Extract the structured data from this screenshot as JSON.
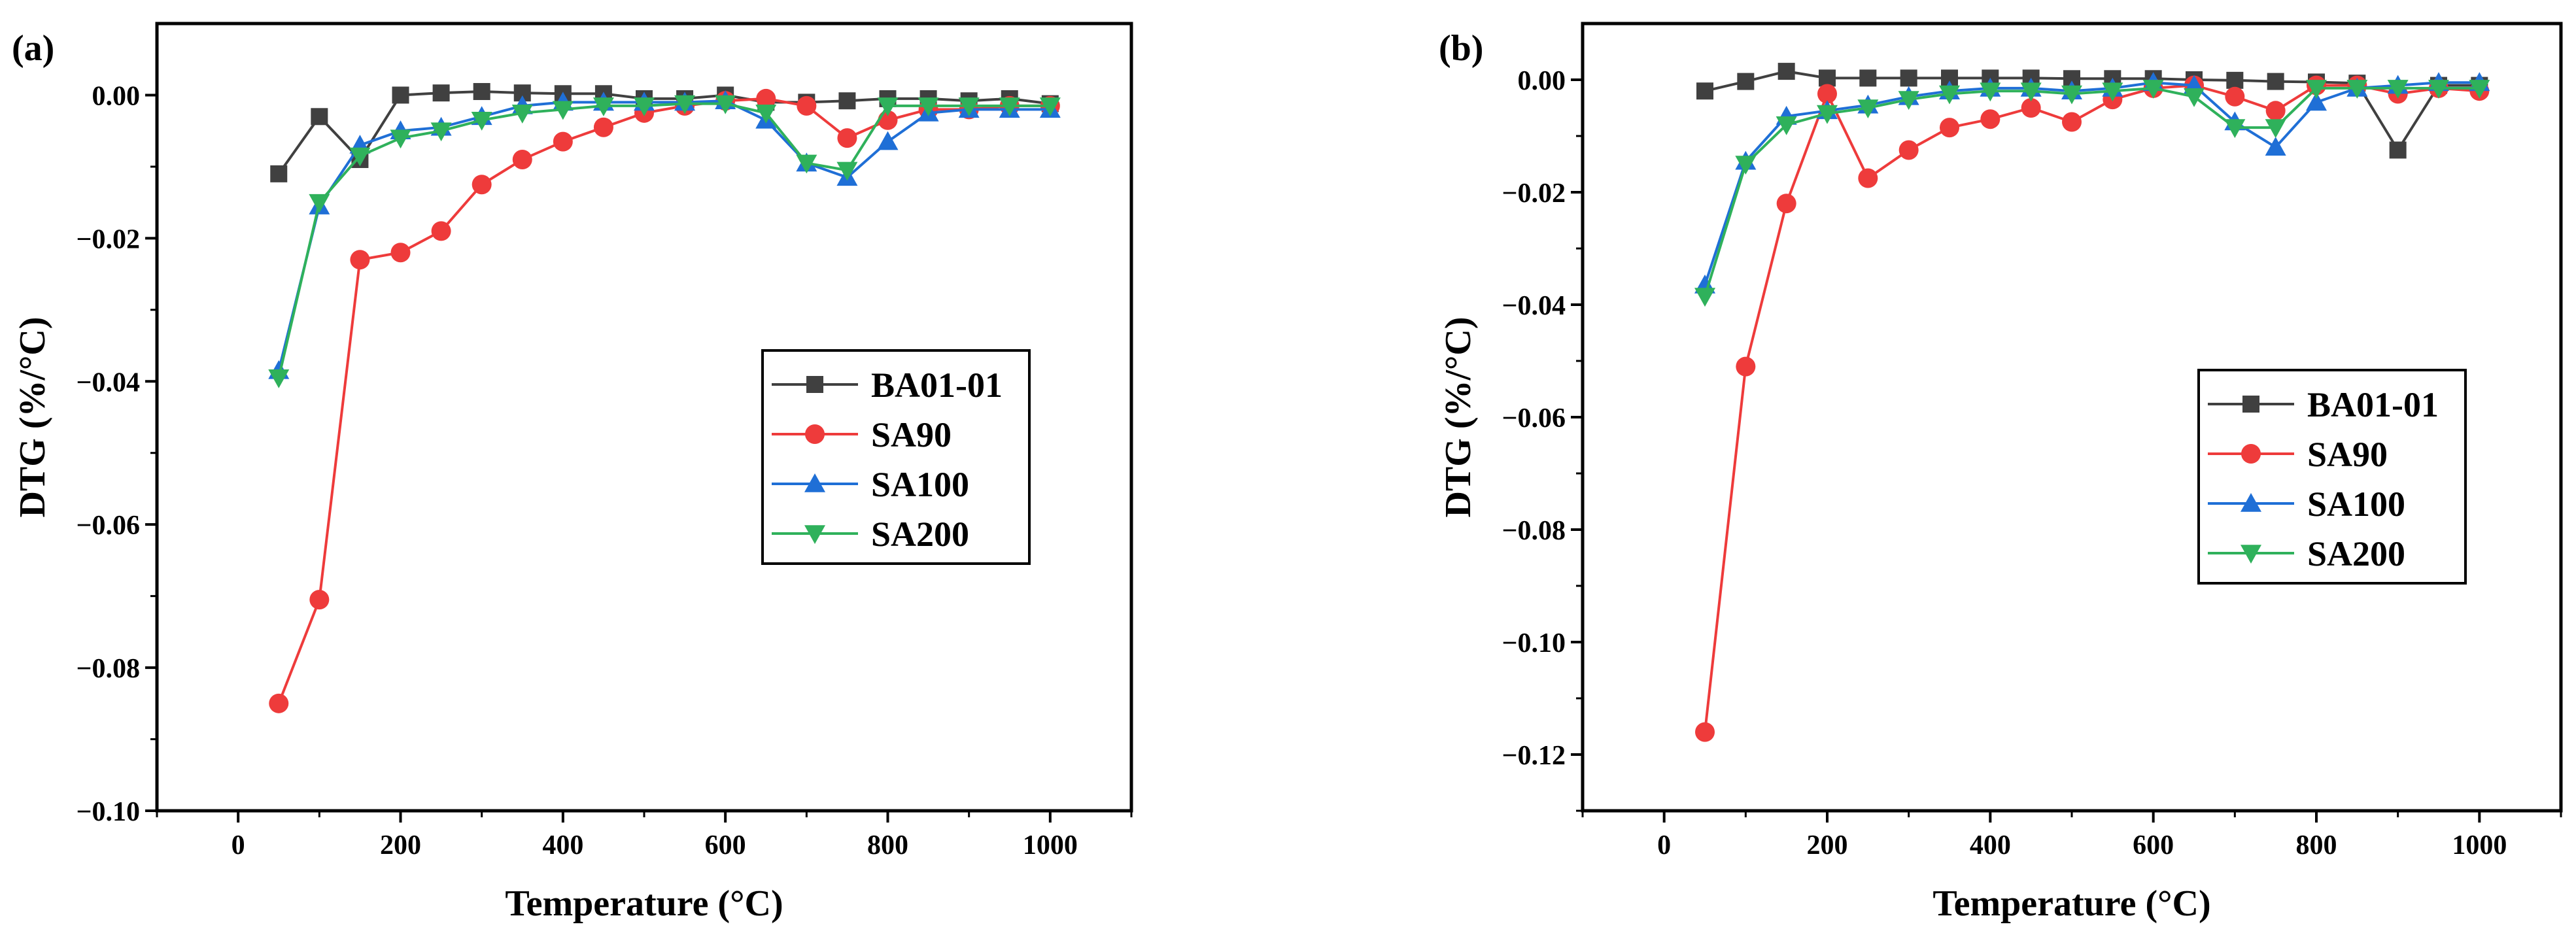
{
  "chart_data": [
    {
      "type": "line",
      "panel_label": "(a)",
      "xlabel": "Temperature (°C)",
      "ylabel": "DTG (%/°C)",
      "xlim": [
        -100,
        1100
      ],
      "ylim": [
        -0.1,
        0.01
      ],
      "x_ticks": [
        0,
        200,
        400,
        600,
        800,
        1000
      ],
      "x_tick_labels": [
        "0",
        "200",
        "400",
        "600",
        "800",
        "1000"
      ],
      "y_ticks": [
        0.0,
        -0.02,
        -0.04,
        -0.06,
        -0.08,
        -0.1
      ],
      "y_tick_labels": [
        "0.00",
        "−0.02",
        "−0.04",
        "−0.06",
        "−0.08",
        "−0.10"
      ],
      "legend_position": "center-right",
      "x": [
        50,
        100,
        150,
        200,
        250,
        300,
        350,
        400,
        450,
        500,
        550,
        600,
        650,
        700,
        750,
        800,
        850,
        900,
        950,
        1000
      ],
      "series": [
        {
          "name": "BA01-01",
          "color": "#404040",
          "marker": "square",
          "values": [
            -0.011,
            -0.003,
            -0.009,
            0.0,
            0.0003,
            0.0005,
            0.0003,
            0.0002,
            0.0002,
            -0.0005,
            -0.0005,
            0.0,
            -0.001,
            -0.001,
            -0.0008,
            -0.0005,
            -0.0005,
            -0.0008,
            -0.0005,
            -0.0012
          ]
        },
        {
          "name": "SA90",
          "color": "#ee3b3b",
          "marker": "circle",
          "values": [
            -0.085,
            -0.0705,
            -0.023,
            -0.022,
            -0.019,
            -0.0125,
            -0.009,
            -0.0065,
            -0.0045,
            -0.0025,
            -0.0015,
            -0.0008,
            -0.0005,
            -0.0015,
            -0.006,
            -0.0035,
            -0.002,
            -0.002,
            -0.0015,
            -0.0015
          ]
        },
        {
          "name": "SA100",
          "color": "#1f6fd6",
          "marker": "triangle-up",
          "values": [
            -0.0385,
            -0.0155,
            -0.007,
            -0.005,
            -0.0045,
            -0.003,
            -0.0015,
            -0.001,
            -0.001,
            -0.001,
            -0.001,
            -0.0008,
            -0.0035,
            -0.0095,
            -0.0115,
            -0.0065,
            -0.0025,
            -0.002,
            -0.002,
            -0.002
          ]
        },
        {
          "name": "SA200",
          "color": "#2fb15b",
          "marker": "triangle-down",
          "values": [
            -0.0395,
            -0.015,
            -0.0085,
            -0.006,
            -0.005,
            -0.0035,
            -0.0025,
            -0.002,
            -0.0015,
            -0.0015,
            -0.0012,
            -0.0012,
            -0.0025,
            -0.0095,
            -0.0105,
            -0.0015,
            -0.0015,
            -0.0015,
            -0.0015,
            -0.0015
          ]
        }
      ]
    },
    {
      "type": "line",
      "panel_label": "(b)",
      "xlabel": "Temperature (°C)",
      "ylabel": "DTG (%/°C)",
      "xlim": [
        -100,
        1100
      ],
      "ylim": [
        -0.13,
        0.01
      ],
      "x_ticks": [
        0,
        200,
        400,
        600,
        800,
        1000
      ],
      "x_tick_labels": [
        "0",
        "200",
        "400",
        "600",
        "800",
        "1000"
      ],
      "y_ticks": [
        0.0,
        -0.02,
        -0.04,
        -0.06,
        -0.08,
        -0.1,
        -0.12
      ],
      "y_tick_labels": [
        "0.00",
        "−0.02",
        "−0.04",
        "−0.06",
        "−0.08",
        "−0.10",
        "−0.12"
      ],
      "legend_position": "center-right",
      "x": [
        50,
        100,
        150,
        200,
        250,
        300,
        350,
        400,
        450,
        500,
        550,
        600,
        650,
        700,
        750,
        800,
        850,
        900,
        950,
        1000
      ],
      "series": [
        {
          "name": "BA01-01",
          "color": "#404040",
          "marker": "square",
          "values": [
            -0.002,
            -0.0003,
            0.0015,
            0.0003,
            0.0003,
            0.0003,
            0.0003,
            0.0003,
            0.0003,
            0.0002,
            0.0002,
            0.0002,
            0.0,
            -0.0001,
            -0.0003,
            -0.0004,
            -0.0006,
            -0.0125,
            -0.001,
            -0.001
          ]
        },
        {
          "name": "SA90",
          "color": "#ee3b3b",
          "marker": "circle",
          "values": [
            -0.116,
            -0.051,
            -0.022,
            -0.0025,
            -0.0175,
            -0.0125,
            -0.0085,
            -0.007,
            -0.005,
            -0.0075,
            -0.0035,
            -0.0015,
            -0.001,
            -0.003,
            -0.0055,
            -0.001,
            -0.001,
            -0.0025,
            -0.0015,
            -0.002
          ]
        },
        {
          "name": "SA100",
          "color": "#1f6fd6",
          "marker": "triangle-up",
          "values": [
            -0.0365,
            -0.0145,
            -0.0065,
            -0.0055,
            -0.0045,
            -0.003,
            -0.002,
            -0.0015,
            -0.0015,
            -0.002,
            -0.0015,
            -0.0005,
            -0.001,
            -0.0075,
            -0.012,
            -0.004,
            -0.0015,
            -0.001,
            -0.0005,
            -0.0005
          ]
        },
        {
          "name": "SA200",
          "color": "#2fb15b",
          "marker": "triangle-down",
          "values": [
            -0.0385,
            -0.015,
            -0.008,
            -0.006,
            -0.005,
            -0.0035,
            -0.0025,
            -0.002,
            -0.002,
            -0.0025,
            -0.002,
            -0.0015,
            -0.003,
            -0.0085,
            -0.0085,
            -0.0015,
            -0.0015,
            -0.0015,
            -0.0015,
            -0.0015
          ]
        }
      ]
    }
  ]
}
